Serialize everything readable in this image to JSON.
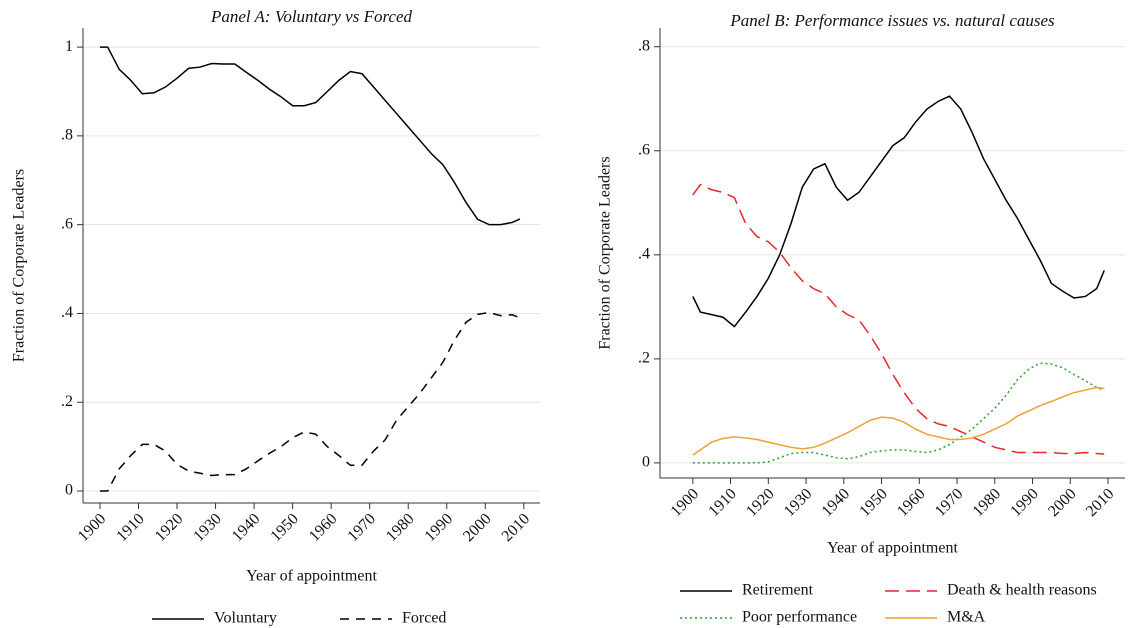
{
  "chart_data": [
    {
      "type": "line",
      "title": "Panel A: Voluntary vs Forced",
      "xlabel": "Year of appointment",
      "ylabel": "Fraction of Corporate Leaders",
      "x": [
        1900,
        1902,
        1905,
        1908,
        1911,
        1914,
        1917,
        1920,
        1923,
        1926,
        1929,
        1932,
        1935,
        1938,
        1941,
        1944,
        1947,
        1950,
        1953,
        1956,
        1959,
        1962,
        1965,
        1968,
        1971,
        1974,
        1977,
        1980,
        1983,
        1986,
        1989,
        1992,
        1995,
        1998,
        2001,
        2004,
        2007,
        2009
      ],
      "series": [
        {
          "name": "Voluntary",
          "color": "#000000",
          "dash": "solid",
          "values": [
            1.0,
            1.0,
            0.95,
            0.925,
            0.895,
            0.897,
            0.91,
            0.93,
            0.952,
            0.955,
            0.963,
            0.962,
            0.962,
            0.943,
            0.925,
            0.905,
            0.888,
            0.868,
            0.868,
            0.875,
            0.9,
            0.925,
            0.945,
            0.94,
            0.91,
            0.88,
            0.85,
            0.82,
            0.79,
            0.76,
            0.735,
            0.695,
            0.65,
            0.612,
            0.6,
            0.6,
            0.605,
            0.613
          ]
        },
        {
          "name": "Forced",
          "color": "#000000",
          "dash": "dashed",
          "values": [
            0,
            0,
            0.05,
            0.08,
            0.105,
            0.105,
            0.09,
            0.06,
            0.045,
            0.04,
            0.035,
            0.037,
            0.037,
            0.05,
            0.068,
            0.085,
            0.1,
            0.12,
            0.133,
            0.128,
            0.1,
            0.08,
            0.058,
            0.058,
            0.09,
            0.115,
            0.16,
            0.19,
            0.22,
            0.255,
            0.29,
            0.34,
            0.38,
            0.398,
            0.402,
            0.395,
            0.397,
            0.39
          ]
        }
      ],
      "xlim": [
        1895.6,
        2014.2
      ],
      "xticks": [
        1900,
        1910,
        1920,
        1930,
        1940,
        1950,
        1960,
        1970,
        1980,
        1990,
        2000,
        2010
      ],
      "ylim": [
        -0.027,
        1.043
      ],
      "yticks": [
        0,
        {
          "value": 0.2,
          "label": ".2"
        },
        {
          "value": 0.4,
          "label": ".4"
        },
        {
          "value": 0.6,
          "label": ".6"
        },
        {
          "value": 0.8,
          "label": ".8"
        },
        1
      ],
      "grid": true
    },
    {
      "type": "line",
      "title": "Panel B: Performance issues vs. natural causes",
      "xlabel": "Year of appointment",
      "ylabel": "Fraction of Corporate Leaders",
      "x": [
        1900,
        1902,
        1905,
        1908,
        1911,
        1914,
        1917,
        1920,
        1923,
        1926,
        1929,
        1932,
        1935,
        1938,
        1941,
        1944,
        1947,
        1950,
        1953,
        1956,
        1959,
        1962,
        1965,
        1968,
        1971,
        1974,
        1977,
        1980,
        1983,
        1986,
        1989,
        1992,
        1995,
        1998,
        2001,
        2004,
        2007,
        2009
      ],
      "series": [
        {
          "name": "Retirement",
          "color": "#000000",
          "dash": "solid",
          "values": [
            0.32,
            0.29,
            0.285,
            0.28,
            0.262,
            0.29,
            0.32,
            0.355,
            0.4,
            0.46,
            0.53,
            0.565,
            0.575,
            0.53,
            0.505,
            0.52,
            0.55,
            0.58,
            0.61,
            0.625,
            0.655,
            0.68,
            0.695,
            0.705,
            0.68,
            0.635,
            0.585,
            0.545,
            0.505,
            0.47,
            0.43,
            0.39,
            0.345,
            0.33,
            0.317,
            0.32,
            0.335,
            0.37
          ]
        },
        {
          "name": "Death & health reasons",
          "color": "#e8262b",
          "dash": "longdash",
          "values": [
            0.515,
            0.535,
            0.525,
            0.52,
            0.51,
            0.46,
            0.435,
            0.425,
            0.405,
            0.375,
            0.35,
            0.335,
            0.325,
            0.3,
            0.285,
            0.275,
            0.245,
            0.21,
            0.17,
            0.135,
            0.105,
            0.085,
            0.075,
            0.07,
            0.06,
            0.05,
            0.04,
            0.03,
            0.025,
            0.02,
            0.02,
            0.02,
            0.02,
            0.018,
            0.018,
            0.02,
            0.018,
            0.017
          ]
        },
        {
          "name": "Poor performance",
          "color": "#2ca02c",
          "dash": "dotted",
          "values": [
            0,
            0,
            0,
            0,
            0,
            0,
            0,
            0.002,
            0.01,
            0.018,
            0.02,
            0.02,
            0.015,
            0.01,
            0.008,
            0.012,
            0.02,
            0.023,
            0.025,
            0.025,
            0.022,
            0.02,
            0.025,
            0.035,
            0.05,
            0.065,
            0.085,
            0.105,
            0.13,
            0.16,
            0.18,
            0.192,
            0.19,
            0.183,
            0.17,
            0.158,
            0.145,
            0.14
          ]
        },
        {
          "name": "M&A",
          "color": "#f0a030",
          "dash": "solid",
          "values": [
            0.015,
            0.025,
            0.04,
            0.047,
            0.05,
            0.048,
            0.045,
            0.04,
            0.035,
            0.03,
            0.027,
            0.03,
            0.038,
            0.048,
            0.058,
            0.07,
            0.082,
            0.088,
            0.086,
            0.078,
            0.065,
            0.055,
            0.05,
            0.045,
            0.045,
            0.048,
            0.055,
            0.065,
            0.075,
            0.09,
            0.1,
            0.11,
            0.118,
            0.127,
            0.135,
            0.14,
            0.145,
            0.143
          ]
        }
      ],
      "xlim": [
        1891.3,
        2014.5
      ],
      "xticks": [
        1900,
        1910,
        1920,
        1930,
        1940,
        1950,
        1960,
        1970,
        1980,
        1990,
        2000,
        2010
      ],
      "ylim": [
        -0.029,
        0.836
      ],
      "yticks": [
        0,
        {
          "value": 0.2,
          "label": ".2"
        },
        {
          "value": 0.4,
          "label": ".4"
        },
        {
          "value": 0.6,
          "label": ".6"
        },
        {
          "value": 0.8,
          "label": ".8"
        }
      ],
      "grid": true
    }
  ]
}
